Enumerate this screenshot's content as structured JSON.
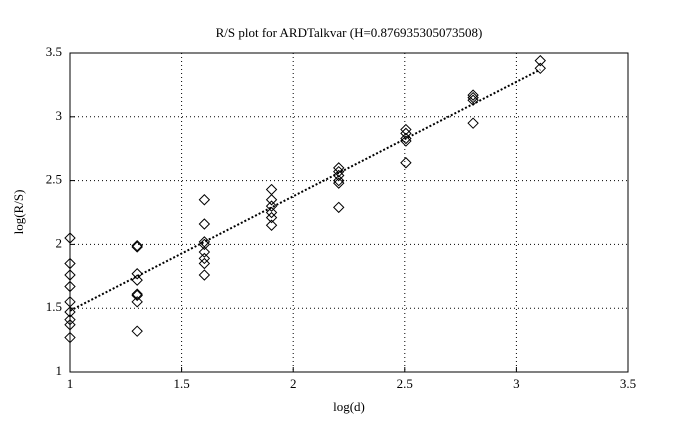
{
  "chart_data": {
    "type": "scatter",
    "title": "R/S plot for ARDTalkvar (H=0.876935305073508)",
    "xlabel": "log(d)",
    "ylabel": "log(R/S)",
    "xlim": [
      1,
      3.5
    ],
    "ylim": [
      1,
      3.5
    ],
    "xticks": [
      1,
      1.5,
      2,
      2.5,
      3,
      3.5
    ],
    "yticks": [
      1,
      1.5,
      2,
      2.5,
      3,
      3.5
    ],
    "grid": true,
    "series": [
      {
        "style": "diamond",
        "color": "#000000",
        "x": [
          1,
          1,
          1,
          1,
          1,
          1,
          1,
          1,
          1,
          1.301,
          1.301,
          1.301,
          1.301,
          1.301,
          1.301,
          1.301,
          1.301,
          1.602,
          1.602,
          1.602,
          1.602,
          1.602,
          1.602,
          1.602,
          1.602,
          1.903,
          1.903,
          1.903,
          1.903,
          1.903,
          1.903,
          2.204,
          2.204,
          2.204,
          2.204,
          2.204,
          2.204,
          2.505,
          2.505,
          2.505,
          2.505,
          2.505,
          2.806,
          2.806,
          2.806,
          2.806,
          3.107,
          3.107
        ],
        "values": [
          2.05,
          1.85,
          1.76,
          1.67,
          1.55,
          1.47,
          1.41,
          1.37,
          1.27,
          1.99,
          1.98,
          1.77,
          1.72,
          1.61,
          1.6,
          1.55,
          1.32,
          2.35,
          2.16,
          2.02,
          2.0,
          1.94,
          1.89,
          1.85,
          1.76,
          2.43,
          2.35,
          2.3,
          2.25,
          2.21,
          2.15,
          2.6,
          2.57,
          2.54,
          2.5,
          2.48,
          2.29,
          2.9,
          2.87,
          2.83,
          2.81,
          2.64,
          3.17,
          3.15,
          3.13,
          2.95,
          3.44,
          3.38
        ]
      },
      {
        "style": "dotted-line",
        "color": "#000000",
        "x": [
          1,
          3.107
        ],
        "values": [
          1.48,
          3.37
        ]
      }
    ]
  }
}
